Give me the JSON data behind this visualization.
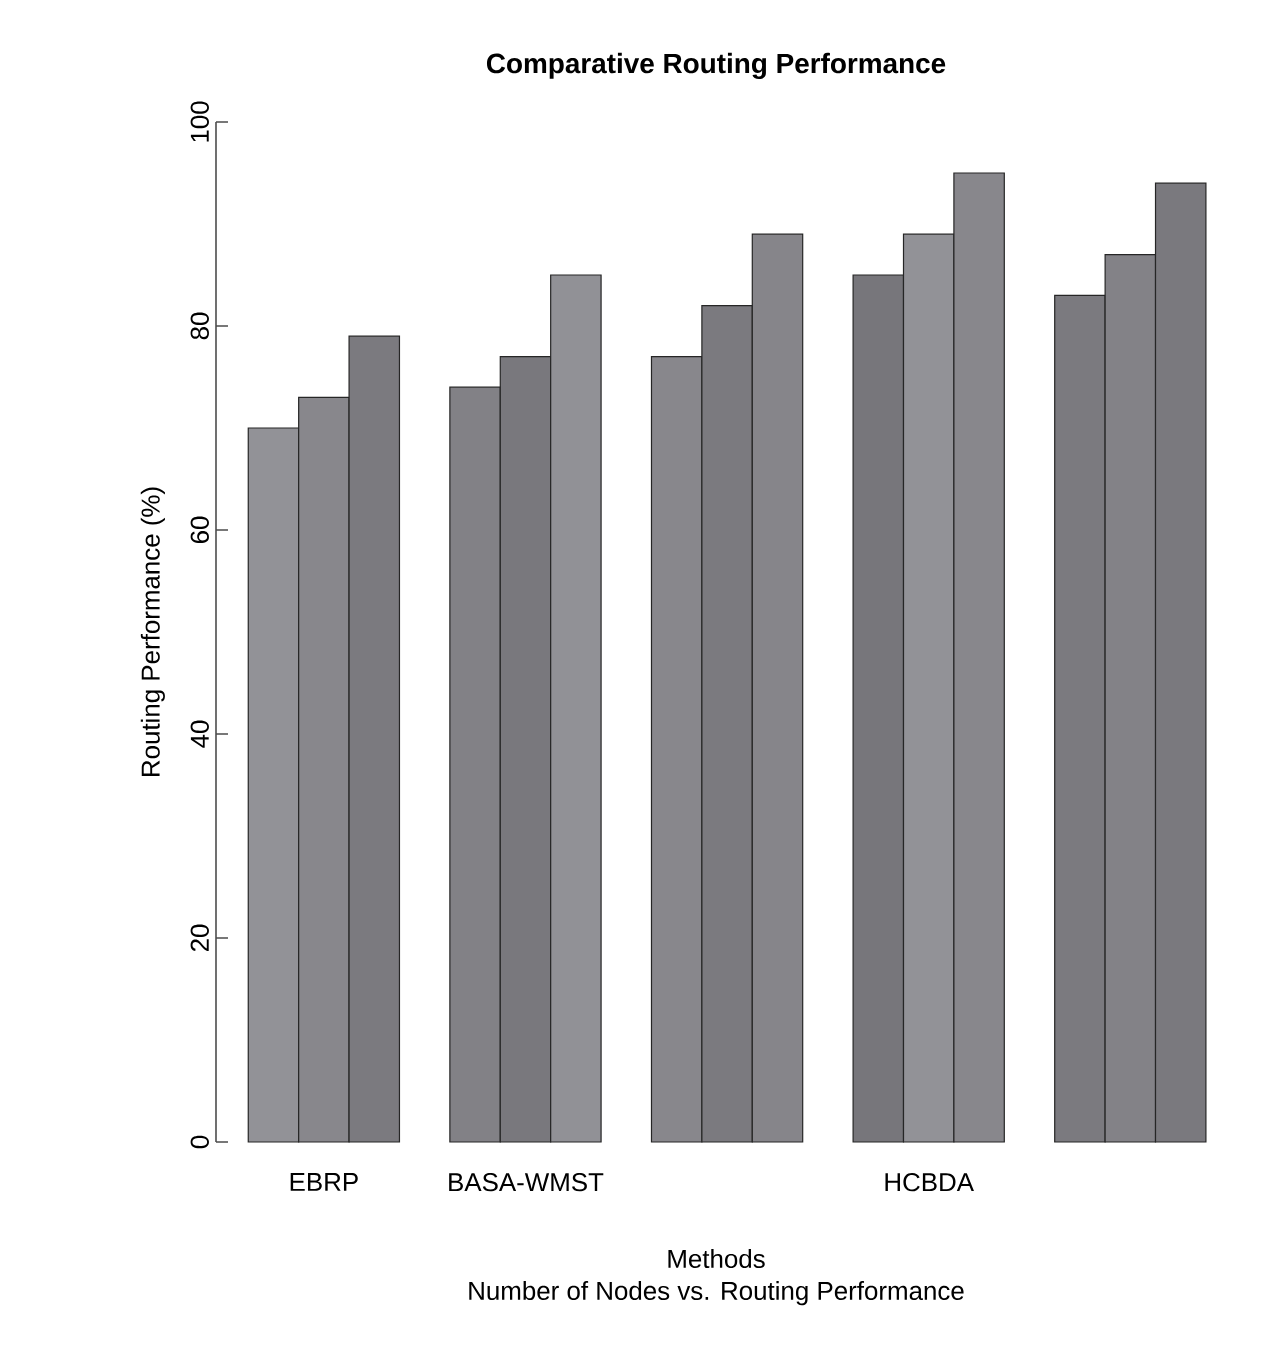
{
  "chart_data": {
    "type": "bar",
    "title": "Comparative Routing Performance",
    "xlabel": "Methods",
    "ylabel": "Routing Performance (%)",
    "annotations": [
      "Number of Nodes vs. Routing Performance"
    ],
    "categories": [
      "EBRP",
      "BASA-WMST",
      null,
      "HCBDA",
      null
    ],
    "series": [
      {
        "colors": [
          "#929297",
          "#828186",
          "#88878c",
          "#77767b",
          "#7b7a7f"
        ],
        "values": [
          70,
          74,
          77,
          85,
          83
        ]
      },
      {
        "colors": [
          "#88878c",
          "#79787d",
          "#7b7a7f",
          "#929297",
          "#838287"
        ],
        "values": [
          73,
          77,
          82,
          89,
          87
        ]
      },
      {
        "colors": [
          "#7b7a7f",
          "#919196",
          "#86858a",
          "#88878c",
          "#7a797e"
        ],
        "values": [
          79,
          85,
          89,
          95,
          94
        ]
      }
    ],
    "ylim": [
      0,
      100
    ],
    "yticks": [
      0,
      20,
      40,
      60,
      80,
      100
    ],
    "grid": false
  }
}
